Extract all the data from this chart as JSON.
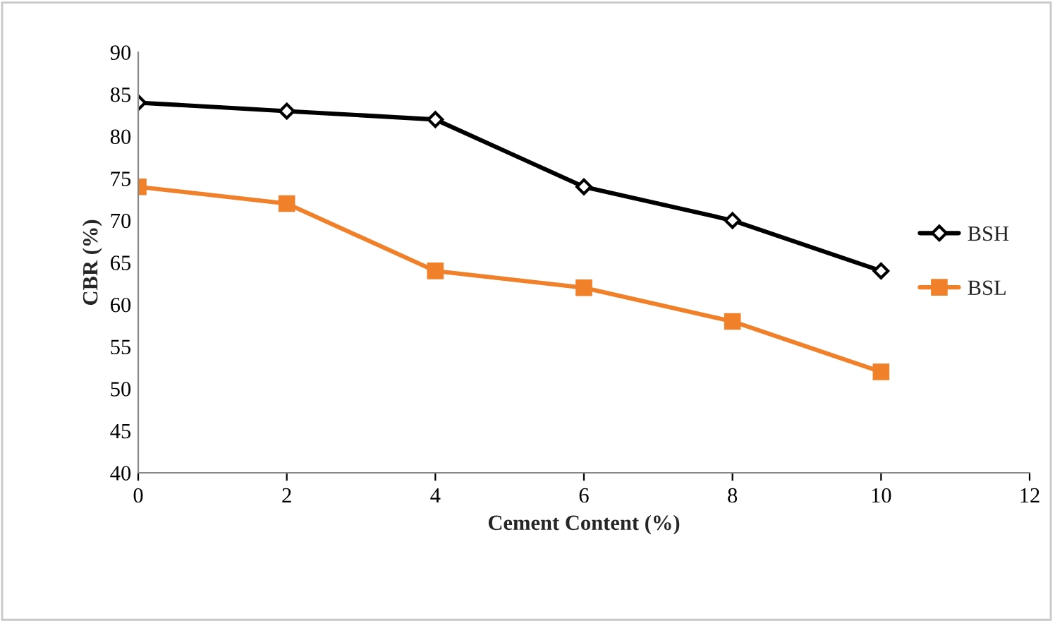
{
  "chart_data": {
    "type": "line",
    "xlabel": "Cement Content (%)",
    "ylabel": "CBR (%)",
    "x": [
      0,
      2,
      4,
      6,
      8,
      10
    ],
    "series": [
      {
        "name": "BSH",
        "color": "#000000",
        "marker": "diamond",
        "values": [
          84,
          83,
          82,
          74,
          70,
          64
        ]
      },
      {
        "name": "BSL",
        "color": "#f0812a",
        "marker": "square",
        "values": [
          74,
          72,
          64,
          62,
          58,
          52
        ]
      }
    ],
    "xlim": [
      0,
      12
    ],
    "xticks": [
      0,
      2,
      4,
      6,
      8,
      10,
      12
    ],
    "ylim": [
      40,
      90
    ],
    "yticks": [
      40,
      45,
      50,
      55,
      60,
      65,
      70,
      75,
      80,
      85,
      90
    ],
    "grid": false,
    "legend": "right",
    "line_style": "solid"
  }
}
